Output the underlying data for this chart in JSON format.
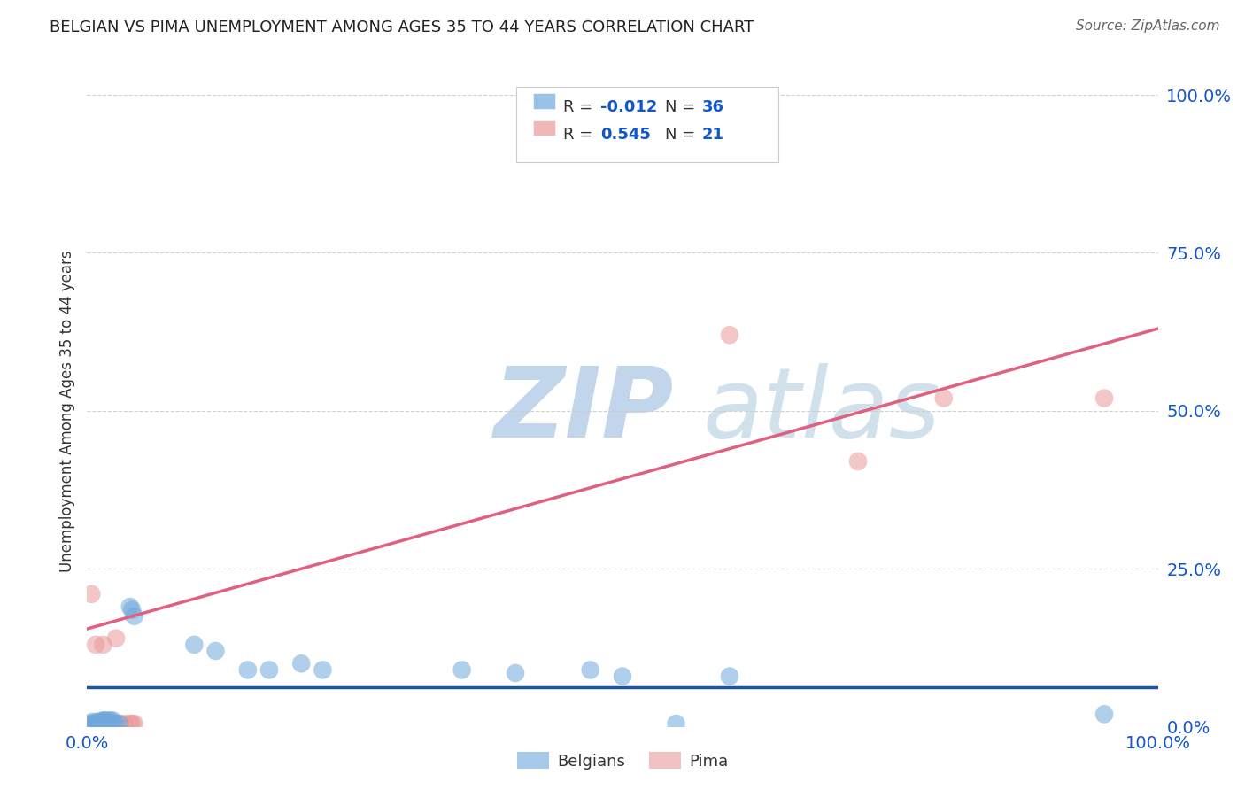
{
  "title": "BELGIAN VS PIMA UNEMPLOYMENT AMONG AGES 35 TO 44 YEARS CORRELATION CHART",
  "source": "Source: ZipAtlas.com",
  "ylabel": "Unemployment Among Ages 35 to 44 years",
  "xlim": [
    0.0,
    1.0
  ],
  "ylim": [
    0.0,
    1.0
  ],
  "ytick_labels": [
    "0.0%",
    "25.0%",
    "50.0%",
    "75.0%",
    "100.0%"
  ],
  "ytick_positions": [
    0.0,
    0.25,
    0.5,
    0.75,
    1.0
  ],
  "legend_label_blue": "Belgians",
  "legend_label_pink": "Pima",
  "blue_color": "#6fa8dc",
  "pink_color": "#ea9999",
  "blue_line_color": "#1a56a0",
  "pink_line_color": "#e06080",
  "text_blue_color": "#1155cc",
  "watermark_zip": "ZIP",
  "watermark_atlas": "atlas",
  "watermark_color_zip": "#b8cfe8",
  "watermark_color_atlas": "#c8d8e8",
  "blue_x": [
    0.003,
    0.005,
    0.007,
    0.008,
    0.009,
    0.01,
    0.011,
    0.012,
    0.013,
    0.014,
    0.015,
    0.016,
    0.017,
    0.018,
    0.019,
    0.02,
    0.022,
    0.024,
    0.026,
    0.03,
    0.04,
    0.042,
    0.044,
    0.1,
    0.12,
    0.15,
    0.17,
    0.2,
    0.22,
    0.35,
    0.4,
    0.47,
    0.5,
    0.55,
    0.6,
    0.95
  ],
  "blue_y": [
    0.005,
    0.008,
    0.005,
    0.005,
    0.008,
    0.005,
    0.005,
    0.008,
    0.005,
    0.01,
    0.008,
    0.01,
    0.01,
    0.005,
    0.005,
    0.01,
    0.01,
    0.01,
    0.005,
    0.005,
    0.19,
    0.185,
    0.175,
    0.13,
    0.12,
    0.09,
    0.09,
    0.1,
    0.09,
    0.09,
    0.085,
    0.09,
    0.08,
    0.005,
    0.08,
    0.02
  ],
  "pink_x": [
    0.003,
    0.004,
    0.005,
    0.008,
    0.01,
    0.013,
    0.015,
    0.017,
    0.02,
    0.022,
    0.025,
    0.027,
    0.03,
    0.035,
    0.04,
    0.042,
    0.044,
    0.6,
    0.72,
    0.8,
    0.95
  ],
  "pink_y": [
    0.005,
    0.21,
    0.005,
    0.13,
    0.005,
    0.005,
    0.13,
    0.005,
    0.005,
    0.005,
    0.005,
    0.14,
    0.005,
    0.005,
    0.005,
    0.005,
    0.005,
    0.62,
    0.42,
    0.52,
    0.52
  ],
  "blue_slope": 0.0,
  "blue_intercept": 0.063,
  "pink_slope": 0.475,
  "pink_intercept": 0.155,
  "background_color": "#ffffff",
  "grid_color": "#cccccc"
}
